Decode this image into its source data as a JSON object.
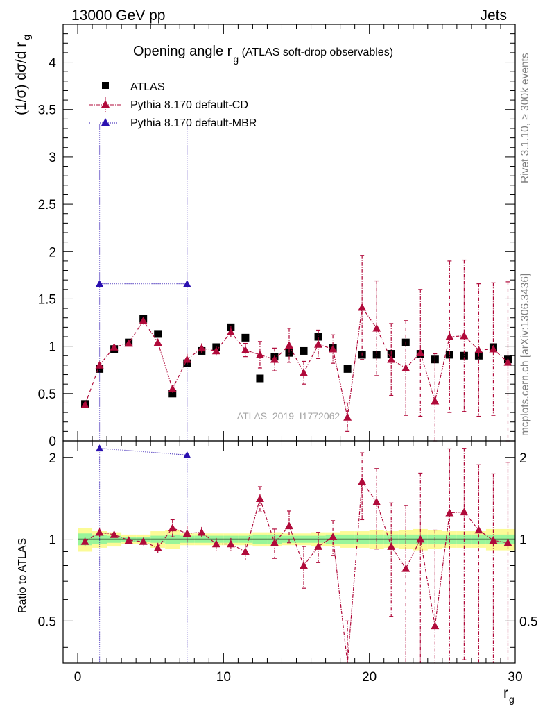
{
  "header": {
    "left": "13000 GeV pp",
    "right": "Jets"
  },
  "side": {
    "rivet": "Rivet 3.1.10, ≥ 300k events",
    "mcplots": "mcplots.cern.ch [arXiv:1306.3436]"
  },
  "chart_data": {
    "type": "scatter",
    "title_main": "Opening angle r",
    "title_sub": "g",
    "title_rest": " (ATLAS soft-drop observables)",
    "analysis_label": "ATLAS_2019_I1772062",
    "xlabel": "r",
    "xlabel_sub": "g",
    "ylabel_main": "(1/σ) dσ/d r",
    "ylabel_sub": "g",
    "ratio_ylabel": "Ratio to ATLAS",
    "xlim": [
      -1,
      30
    ],
    "ylim": [
      0,
      4.4
    ],
    "ratio_ylim": [
      0.35,
      2.3
    ],
    "x_ticks": [
      "0",
      "10",
      "20",
      "30"
    ],
    "y_ticks": [
      "0",
      "0.5",
      "1",
      "1.5",
      "2",
      "2.5",
      "3",
      "3.5",
      "4"
    ],
    "ratio_ticks": [
      "0.5",
      "1",
      "2"
    ],
    "legend": [
      "ATLAS",
      "Pythia 8.170 default-CD",
      "Pythia 8.170 default-MBR"
    ],
    "colors": {
      "data": "#000000",
      "cd": "#b00a3a",
      "mbr": "#2a10b0",
      "band_inner": "#99f59a",
      "band_outer": "#fbfb96"
    },
    "x": [
      0.5,
      1.5,
      2.5,
      3.5,
      4.5,
      5.5,
      6.5,
      7.5,
      8.5,
      9.5,
      10.5,
      11.5,
      12.5,
      13.5,
      14.5,
      15.5,
      16.5,
      17.5,
      18.5,
      19.5,
      20.5,
      21.5,
      22.5,
      23.5,
      24.5,
      25.5,
      26.5,
      27.5,
      28.5,
      29.5
    ],
    "atlas": [
      0.39,
      0.76,
      0.97,
      1.04,
      1.29,
      1.13,
      0.5,
      0.82,
      0.95,
      0.99,
      1.2,
      1.09,
      0.66,
      0.89,
      0.93,
      0.95,
      1.1,
      0.98,
      0.76,
      0.91,
      0.91,
      0.92,
      1.04,
      0.92,
      0.86,
      0.91,
      0.9,
      0.9,
      0.99,
      0.86
    ],
    "cd": [
      0.38,
      0.8,
      0.99,
      1.03,
      1.27,
      1.04,
      0.55,
      0.86,
      0.98,
      0.95,
      1.15,
      0.96,
      0.91,
      0.86,
      1.01,
      0.72,
      1.02,
      0.97,
      0.25,
      1.41,
      1.19,
      0.86,
      0.77,
      0.93,
      0.42,
      1.1,
      1.11,
      0.96,
      0.97,
      0.83
    ],
    "cd_err": [
      0.02,
      0.03,
      0.03,
      0.03,
      0.04,
      0.04,
      0.04,
      0.06,
      0.05,
      0.05,
      0.06,
      0.07,
      0.14,
      0.12,
      0.18,
      0.12,
      0.15,
      0.15,
      0.15,
      0.55,
      0.5,
      0.38,
      0.5,
      0.67,
      0.5,
      0.8,
      0.8,
      0.7,
      0.7,
      0.85
    ],
    "mbr_x": [
      1.5,
      7.5
    ],
    "mbr": [
      1.66,
      1.66
    ],
    "mbr_err_low": [
      1.66,
      1.66
    ],
    "mbr_err_high": [
      1.68,
      1.68
    ],
    "ratio_cd": [
      0.98,
      1.06,
      1.04,
      0.99,
      0.98,
      0.93,
      1.1,
      1.05,
      1.06,
      0.96,
      0.96,
      0.9,
      1.41,
      0.97,
      1.12,
      0.8,
      0.94,
      1.02,
      0.3,
      1.63,
      1.37,
      0.94,
      0.78,
      1.0,
      0.48,
      1.25,
      1.26,
      1.08,
      0.99,
      0.97
    ],
    "ratio_cd_err": [
      0.04,
      0.04,
      0.03,
      0.03,
      0.03,
      0.04,
      0.08,
      0.07,
      0.05,
      0.05,
      0.05,
      0.06,
      0.15,
      0.12,
      0.15,
      0.14,
      0.12,
      0.15,
      0.2,
      0.45,
      0.45,
      0.42,
      0.55,
      0.75,
      0.6,
      0.9,
      0.9,
      0.8,
      0.75,
      0.95
    ],
    "ratio_mbr": [
      2.16,
      2.04
    ],
    "band_inner": [
      0.05,
      0.04,
      0.03,
      0.02,
      0.02,
      0.03,
      0.04,
      0.03,
      0.03,
      0.03,
      0.03,
      0.03,
      0.04,
      0.04,
      0.03,
      0.03,
      0.03,
      0.04,
      0.04,
      0.04,
      0.04,
      0.04,
      0.04,
      0.04,
      0.04,
      0.04,
      0.04,
      0.04,
      0.04,
      0.04
    ],
    "band_outer": [
      0.1,
      0.07,
      0.06,
      0.04,
      0.04,
      0.07,
      0.08,
      0.05,
      0.05,
      0.05,
      0.05,
      0.05,
      0.06,
      0.06,
      0.05,
      0.05,
      0.06,
      0.06,
      0.07,
      0.07,
      0.08,
      0.07,
      0.08,
      0.09,
      0.08,
      0.07,
      0.07,
      0.07,
      0.09,
      0.09
    ]
  }
}
